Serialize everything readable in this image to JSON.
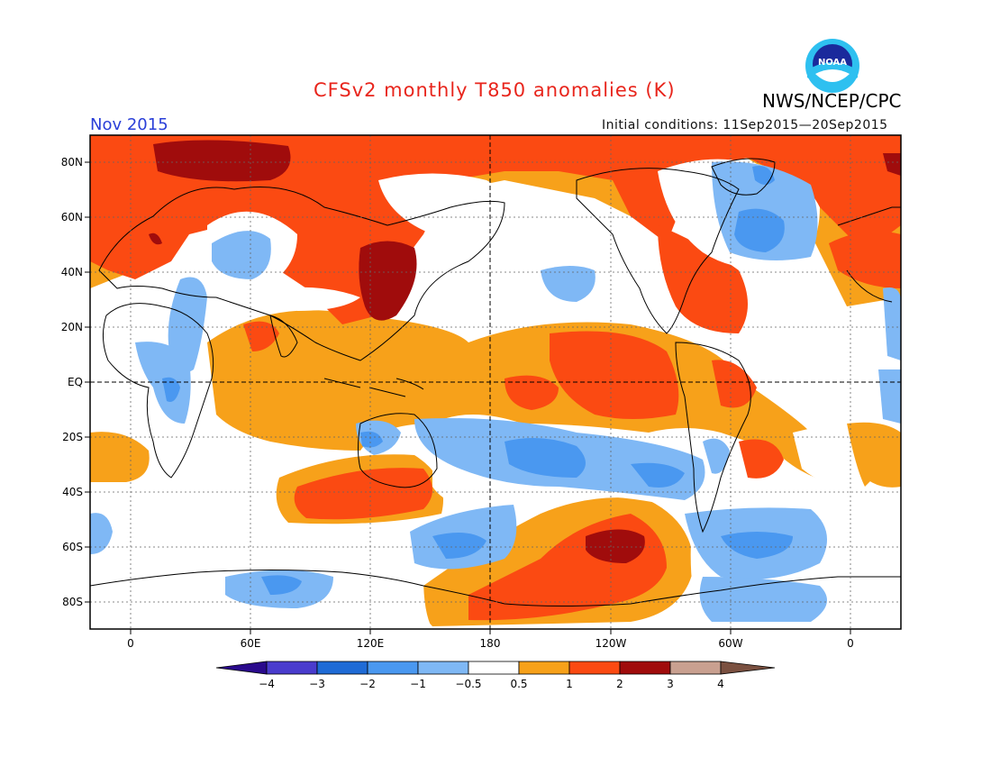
{
  "header": {
    "title": "CFSv2 monthly T850 anomalies (K)",
    "organization": "NWS/NCEP/CPC",
    "logo_text": "NOAA",
    "period": "Nov 2015",
    "initial_conditions": "Initial conditions: 11Sep2015—20Sep2015"
  },
  "map": {
    "projection": "cylindrical",
    "gridlines": "dotted",
    "x_axis_labels": [
      "0",
      "60E",
      "120E",
      "180",
      "120W",
      "60W",
      "0"
    ],
    "y_axis_labels": [
      "80N",
      "60N",
      "40N",
      "20N",
      "EQ",
      "20S",
      "40S",
      "60S",
      "80S"
    ],
    "colors": {
      "lt_m4": "#2a0a8c",
      "m4_m3": "#4a3ccd",
      "m3_m2": "#1f6bd6",
      "m2_m1": "#4a98f0",
      "m1_m05": "#7fb8f5",
      "neutral": "#ffffff",
      "p05_p1": "#f7a11a",
      "p1_p2": "#fb4a12",
      "p2_p3": "#a00c0c",
      "p3_p4": "#c9a090",
      "gt_p4": "#7a5040"
    }
  },
  "colorbar": {
    "labels": [
      "−4",
      "−3",
      "−2",
      "−1",
      "−0.5",
      "0.5",
      "1",
      "2",
      "3",
      "4"
    ]
  }
}
